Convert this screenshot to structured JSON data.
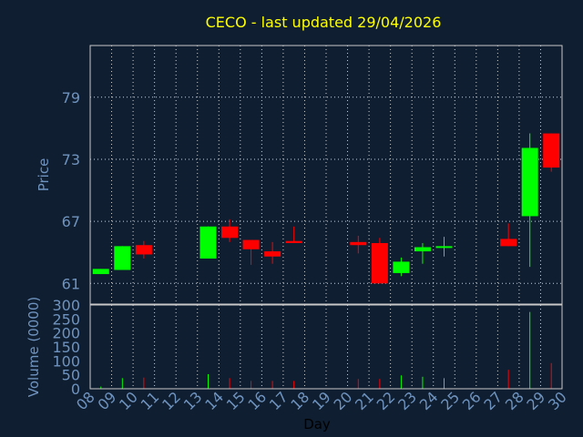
{
  "chart_data": {
    "type": "candlestick",
    "title": "CECO - last updated 29/04/2026",
    "ylabel": "Price",
    "volume_label": "Volume (0000)",
    "xlabel": "Day",
    "x_ticks": [
      "08",
      "09",
      "10",
      "11",
      "12",
      "13",
      "14",
      "15",
      "16",
      "17",
      "18",
      "19",
      "20",
      "21",
      "22",
      "23",
      "24",
      "25",
      "26",
      "27",
      "28",
      "29",
      "30"
    ],
    "price_ticks": [
      61,
      67,
      73,
      79
    ],
    "price_range": [
      59,
      84
    ],
    "volume_ticks": [
      0,
      50,
      100,
      150,
      200,
      250,
      300
    ],
    "volume_range": [
      0,
      300
    ],
    "up_color": "#00ff00",
    "down_color": "#ff0000",
    "candles": [
      {
        "day": "08",
        "open": 61.9,
        "close": 62.4,
        "high": 62.4,
        "low": 61.9,
        "volume": 8
      },
      {
        "day": "09",
        "open": 62.3,
        "close": 64.6,
        "high": 64.6,
        "low": 62.3,
        "volume": 38
      },
      {
        "day": "10",
        "open": 64.7,
        "close": 63.8,
        "high": 65.1,
        "low": 63.4,
        "volume": 40
      },
      {
        "day": "13",
        "open": 63.4,
        "close": 66.5,
        "high": 66.5,
        "low": 63.4,
        "volume": 52
      },
      {
        "day": "14",
        "open": 66.5,
        "close": 65.4,
        "high": 67.2,
        "low": 65.0,
        "volume": 38
      },
      {
        "day": "15",
        "open": 65.2,
        "close": 64.3,
        "high": 65.2,
        "low": 62.8,
        "volume": 28
      },
      {
        "day": "16",
        "open": 64.1,
        "close": 63.6,
        "high": 65.0,
        "low": 62.9,
        "volume": 28
      },
      {
        "day": "17",
        "open": 65.1,
        "close": 64.9,
        "high": 66.5,
        "low": 64.9,
        "volume": 28
      },
      {
        "day": "20",
        "open": 65.0,
        "close": 64.7,
        "high": 65.6,
        "low": 63.9,
        "volume": 35
      },
      {
        "day": "21",
        "open": 64.9,
        "close": 61.0,
        "high": 65.4,
        "low": 61.0,
        "volume": 35
      },
      {
        "day": "22",
        "open": 62.0,
        "close": 63.1,
        "high": 63.5,
        "low": 61.7,
        "volume": 48
      },
      {
        "day": "23",
        "open": 64.1,
        "close": 64.5,
        "high": 64.9,
        "low": 62.9,
        "volume": 43
      },
      {
        "day": "24",
        "open": 64.5,
        "close": 64.6,
        "high": 65.5,
        "low": 63.6,
        "volume": 38
      },
      {
        "day": "27",
        "open": 65.3,
        "close": 64.6,
        "high": 66.8,
        "low": 64.6,
        "volume": 68
      },
      {
        "day": "28",
        "open": 67.5,
        "close": 74.1,
        "high": 75.5,
        "low": 62.6,
        "volume": 275
      },
      {
        "day": "29",
        "open": 75.5,
        "close": 72.2,
        "high": 75.5,
        "low": 71.8,
        "volume": 92
      }
    ]
  }
}
